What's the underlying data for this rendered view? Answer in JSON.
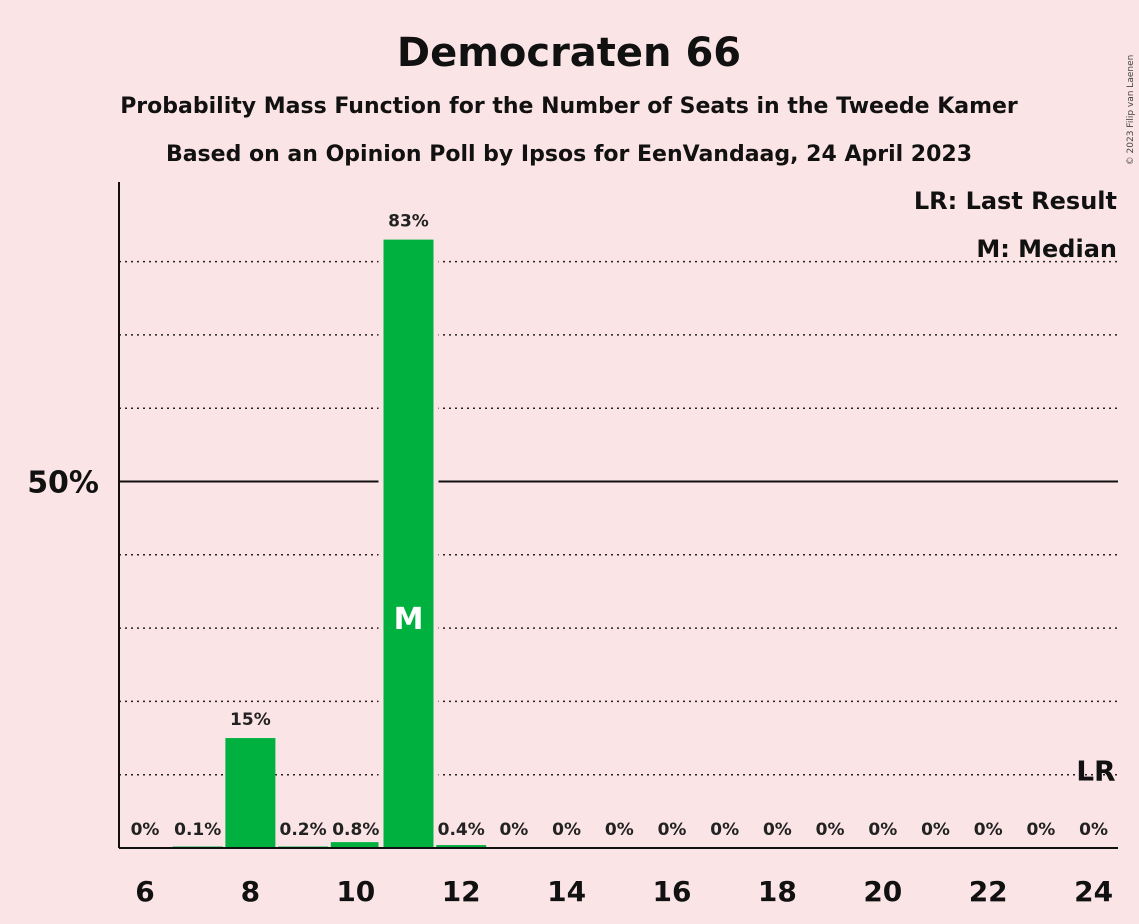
{
  "chart_data": {
    "type": "bar",
    "title": "Democraten 66",
    "subtitle1": "Probability Mass Function for the Number of Seats in the Tweede Kamer",
    "subtitle2": "Based on an Opinion Poll by Ipsos for EenVandaag, 24 April 2023",
    "copyright": "© 2023 Filip van Laenen",
    "categories": [
      6,
      7,
      8,
      9,
      10,
      11,
      12,
      13,
      14,
      15,
      16,
      17,
      18,
      19,
      20,
      21,
      22,
      23,
      24
    ],
    "values": [
      0,
      0.1,
      15,
      0.2,
      0.8,
      83,
      0.4,
      0,
      0,
      0,
      0,
      0,
      0,
      0,
      0,
      0,
      0,
      0,
      0
    ],
    "value_labels": [
      "0%",
      "0.1%",
      "15%",
      "0.2%",
      "0.8%",
      "83%",
      "0.4%",
      "0%",
      "0%",
      "0%",
      "0%",
      "0%",
      "0%",
      "0%",
      "0%",
      "0%",
      "0%",
      "0%",
      "0%"
    ],
    "x_tick_labels": [
      "6",
      "8",
      "10",
      "12",
      "14",
      "16",
      "18",
      "20",
      "22",
      "24"
    ],
    "y_tick_labels": [
      {
        "value": 50,
        "label": "50%"
      }
    ],
    "ylim": [
      0,
      90
    ],
    "grid_dotted_values": [
      10,
      20,
      30,
      40,
      60,
      70,
      80
    ],
    "solid_line_value": 50,
    "median_seat": 11,
    "median_marker": "M",
    "last_result_seat": 24,
    "last_result_value": 10,
    "last_result_marker": "LR",
    "legend": [
      "LR: Last Result",
      "M: Median"
    ],
    "legend_position": "top-right",
    "bar_color": "#00b140",
    "background_color": "#fbe4e6"
  }
}
